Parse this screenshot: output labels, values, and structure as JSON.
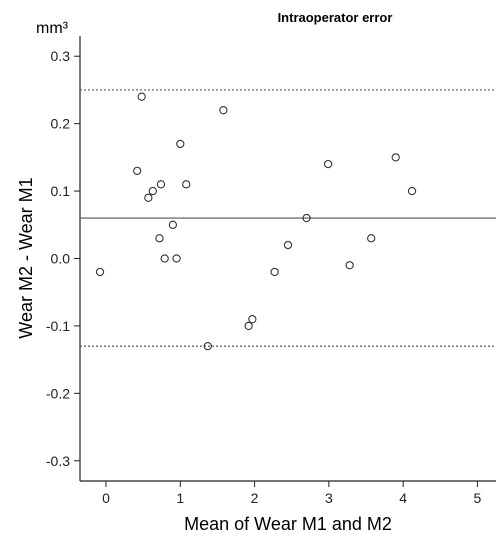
{
  "chart_data": {
    "type": "scatter",
    "title": "Intraoperator error",
    "unit": "mm³",
    "xlabel": "Mean of Wear M1 and M2",
    "ylabel": "Wear M2 - Wear M1",
    "xlim": [
      -0.35,
      5.25
    ],
    "ylim": [
      -0.33,
      0.33
    ],
    "x_ticks": [
      0,
      1,
      2,
      3,
      4,
      5
    ],
    "y_ticks": [
      -0.3,
      -0.2,
      -0.1,
      0.0,
      0.1,
      0.2,
      0.3
    ],
    "x_tick_labels": [
      "0",
      "1",
      "2",
      "3",
      "4",
      "5"
    ],
    "y_tick_labels": [
      "-0.3",
      "-0.2",
      "-0.1",
      "0.0",
      "0.1",
      "0.2",
      "0.3"
    ],
    "reference_lines": [
      {
        "y": 0.25,
        "style": "dotted"
      },
      {
        "y": 0.06,
        "style": "solid"
      },
      {
        "y": -0.13,
        "style": "dotted"
      }
    ],
    "points": [
      {
        "x": -0.08,
        "y": -0.02
      },
      {
        "x": 0.42,
        "y": 0.13
      },
      {
        "x": 0.48,
        "y": 0.24
      },
      {
        "x": 0.57,
        "y": 0.09
      },
      {
        "x": 0.63,
        "y": 0.1
      },
      {
        "x": 0.74,
        "y": 0.11
      },
      {
        "x": 0.72,
        "y": 0.03
      },
      {
        "x": 0.79,
        "y": 0.0
      },
      {
        "x": 0.9,
        "y": 0.05
      },
      {
        "x": 0.95,
        "y": 0.0
      },
      {
        "x": 1.0,
        "y": 0.17
      },
      {
        "x": 1.08,
        "y": 0.11
      },
      {
        "x": 1.37,
        "y": -0.13
      },
      {
        "x": 1.58,
        "y": 0.22
      },
      {
        "x": 1.92,
        "y": -0.1
      },
      {
        "x": 1.97,
        "y": -0.09
      },
      {
        "x": 2.27,
        "y": -0.02
      },
      {
        "x": 2.45,
        "y": 0.02
      },
      {
        "x": 2.7,
        "y": 0.06
      },
      {
        "x": 2.99,
        "y": 0.14
      },
      {
        "x": 3.28,
        "y": -0.01
      },
      {
        "x": 3.57,
        "y": 0.03
      },
      {
        "x": 3.9,
        "y": 0.15
      },
      {
        "x": 4.12,
        "y": 0.1
      }
    ],
    "grid": false,
    "legend": "none",
    "colors": {
      "marker_stroke": "#333333",
      "line": "#555555",
      "axis": "#222222"
    }
  }
}
